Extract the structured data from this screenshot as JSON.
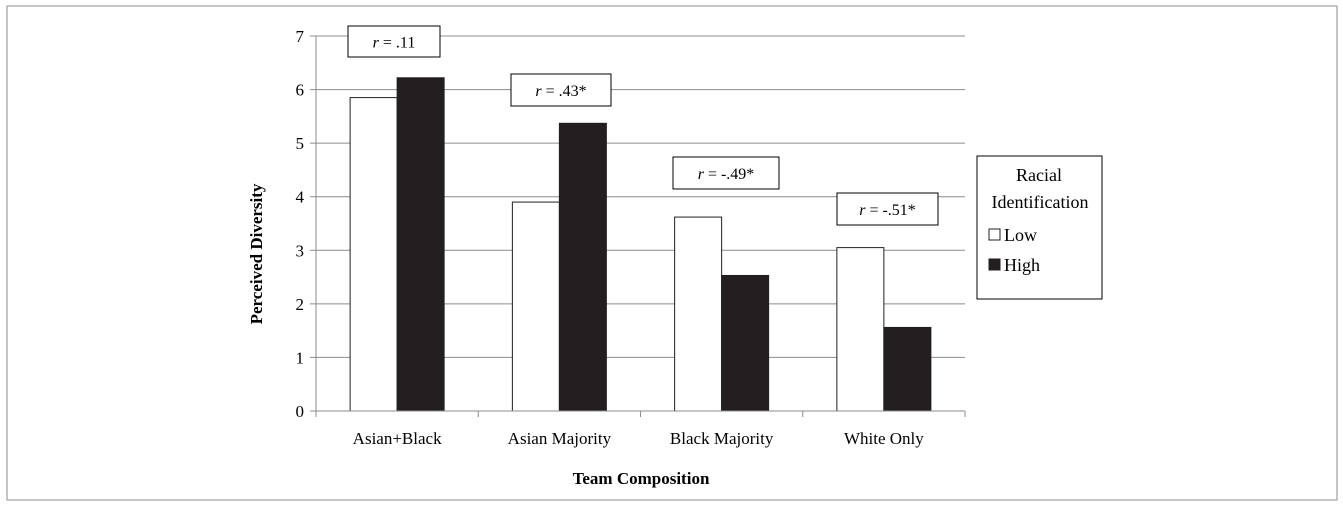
{
  "chart_data": {
    "type": "bar",
    "title": "",
    "xlabel": "Team Composition",
    "ylabel": "Perceived Diversity",
    "ylim": [
      0,
      7
    ],
    "yticks": [
      0,
      1,
      2,
      3,
      4,
      5,
      6,
      7
    ],
    "grid": true,
    "categories": [
      "Asian+Black",
      "Asian Majority",
      "Black Majority",
      "White Only"
    ],
    "series": [
      {
        "name": "Low",
        "values": [
          5.85,
          3.9,
          3.62,
          3.05
        ],
        "color": "#ffffff"
      },
      {
        "name": "High",
        "values": [
          6.22,
          5.37,
          2.53,
          1.56
        ],
        "color": "#231f20"
      }
    ],
    "legend": {
      "title_line1": "Racial",
      "title_line2": "Identification",
      "placement": "right"
    },
    "annotations": [
      {
        "category": "Asian+Black",
        "prefix": "r",
        "value": " = .11"
      },
      {
        "category": "Asian Majority",
        "prefix": "r",
        "value": " = .43*"
      },
      {
        "category": "Black Majority",
        "prefix": "r",
        "value": " = -.49*"
      },
      {
        "category": "White Only",
        "prefix": "r",
        "value": " = -.51*"
      }
    ]
  }
}
